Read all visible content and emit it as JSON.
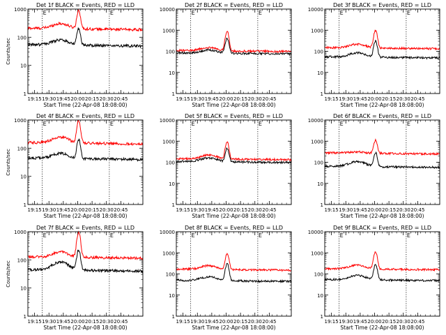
{
  "chart_data": [
    {
      "type": "line",
      "title": "Det 1f BLACK = Events, RED = LLD",
      "xlabel": "Start Time (22-Apr-08 18:08:00)",
      "ylabel": "Counts/sec",
      "y_scale": "log",
      "ylim": [
        1,
        1000
      ],
      "y_ticks": [
        "1",
        "10",
        "100",
        "1000"
      ],
      "x_ticks": [
        "19:15",
        "19:30",
        "19:45",
        "20:00",
        "20:15",
        "20:30",
        "20:45"
      ],
      "x_range_min": [
        0,
        120
      ],
      "markers": [
        {
          "label": "E",
          "time": "19:23"
        },
        {
          "label": "E",
          "time": "20:33"
        }
      ],
      "series": [
        {
          "color": "#ff0000",
          "baseline": 210,
          "hump": 1.5,
          "peak": 900
        },
        {
          "color": "#000000",
          "baseline": 55,
          "hump": 1.5,
          "peak": 200
        }
      ]
    },
    {
      "type": "line",
      "title": "Det 2f BLACK = Events, RED = LLD",
      "xlabel": "Start Time (22-Apr-08 18:08:00)",
      "ylabel": "",
      "y_scale": "log",
      "ylim": [
        1,
        10000
      ],
      "y_ticks": [
        "1",
        "10",
        "100",
        "1000",
        "10000"
      ],
      "x_ticks": [
        "19:15",
        "19:30",
        "19:45",
        "20:00",
        "20:15",
        "20:30",
        "20:45"
      ],
      "x_range_min": [
        0,
        120
      ],
      "markers": [
        {
          "label": "E",
          "time": "19:23"
        },
        {
          "label": "E",
          "time": "20:33"
        }
      ],
      "series": [
        {
          "color": "#ff0000",
          "baseline": 110,
          "hump": 1.4,
          "peak": 850
        },
        {
          "color": "#000000",
          "baseline": 85,
          "hump": 1.4,
          "peak": 420
        }
      ]
    },
    {
      "type": "line",
      "title": "Det 3f BLACK = Events, RED = LLD",
      "xlabel": "Start Time (22-Apr-08 18:08:00)",
      "ylabel": "",
      "y_scale": "log",
      "ylim": [
        1,
        10000
      ],
      "y_ticks": [
        "1",
        "10",
        "100",
        "1000",
        "10000"
      ],
      "x_ticks": [
        "19:15",
        "19:30",
        "19:45",
        "20:00",
        "20:15",
        "20:30",
        "20:45"
      ],
      "x_range_min": [
        0,
        120
      ],
      "markers": [
        {
          "label": "E",
          "time": "19:23"
        },
        {
          "label": "E",
          "time": "20:33"
        }
      ],
      "series": [
        {
          "color": "#ff0000",
          "baseline": 150,
          "hump": 1.5,
          "peak": 950
        },
        {
          "color": "#000000",
          "baseline": 55,
          "hump": 1.6,
          "peak": 300
        }
      ]
    },
    {
      "type": "line",
      "title": "Det 4f BLACK = Events, RED = LLD",
      "xlabel": "Start Time (22-Apr-08 18:08:00)",
      "ylabel": "Counts/sec",
      "y_scale": "log",
      "ylim": [
        1,
        1000
      ],
      "y_ticks": [
        "1",
        "10",
        "100",
        "1000"
      ],
      "x_ticks": [
        "19:15",
        "19:30",
        "19:45",
        "20:00",
        "20:15",
        "20:30",
        "20:45"
      ],
      "x_range_min": [
        0,
        120
      ],
      "markers": [
        {
          "label": "E",
          "time": "19:23"
        },
        {
          "label": "E",
          "time": "20:33"
        }
      ],
      "series": [
        {
          "color": "#ff0000",
          "baseline": 160,
          "hump": 1.6,
          "peak": 950
        },
        {
          "color": "#000000",
          "baseline": 45,
          "hump": 1.5,
          "peak": 200
        }
      ]
    },
    {
      "type": "line",
      "title": "Det 5f BLACK = Events, RED = LLD",
      "xlabel": "Start Time (22-Apr-08 18:08:00)",
      "ylabel": "",
      "y_scale": "log",
      "ylim": [
        1,
        10000
      ],
      "y_ticks": [
        "1",
        "10",
        "100",
        "1000",
        "10000"
      ],
      "x_ticks": [
        "19:15",
        "19:30",
        "19:45",
        "20:00",
        "20:15",
        "20:30",
        "20:45"
      ],
      "x_range_min": [
        0,
        120
      ],
      "markers": [
        {
          "label": "E",
          "time": "19:23"
        },
        {
          "label": "E",
          "time": "20:33"
        }
      ],
      "series": [
        {
          "color": "#ff0000",
          "baseline": 150,
          "hump": 1.5,
          "peak": 900
        },
        {
          "color": "#000000",
          "baseline": 110,
          "hump": 1.5,
          "peak": 450
        }
      ]
    },
    {
      "type": "line",
      "title": "Det 6f BLACK = Events, RED = LLD",
      "xlabel": "Start Time (22-Apr-08 18:08:00)",
      "ylabel": "",
      "y_scale": "log",
      "ylim": [
        1,
        10000
      ],
      "y_ticks": [
        "1",
        "10",
        "100",
        "1000",
        "10000"
      ],
      "x_ticks": [
        "19:15",
        "19:30",
        "19:45",
        "20:00",
        "20:15",
        "20:30",
        "20:45"
      ],
      "x_range_min": [
        0,
        120
      ],
      "markers": [
        {
          "label": "E",
          "time": "19:23"
        },
        {
          "label": "E",
          "time": "20:33"
        }
      ],
      "series": [
        {
          "color": "#ff0000",
          "baseline": 280,
          "hump": 1.15,
          "peak": 1100
        },
        {
          "color": "#000000",
          "baseline": 65,
          "hump": 1.7,
          "peak": 280
        }
      ]
    },
    {
      "type": "line",
      "title": "Det 7f BLACK = Events, RED = LLD",
      "xlabel": "Start Time (22-Apr-08 18:08:00)",
      "ylabel": "Counts/sec",
      "y_scale": "log",
      "ylim": [
        1,
        1000
      ],
      "y_ticks": [
        "1",
        "10",
        "100",
        "1000"
      ],
      "x_ticks": [
        "19:15",
        "19:30",
        "19:45",
        "20:00",
        "20:15",
        "20:30",
        "20:45"
      ],
      "x_range_min": [
        0,
        120
      ],
      "markers": [
        {
          "label": "E",
          "time": "19:23"
        },
        {
          "label": "E",
          "time": "20:33"
        }
      ],
      "series": [
        {
          "color": "#ff0000",
          "baseline": 130,
          "hump": 1.5,
          "peak": 950
        },
        {
          "color": "#000000",
          "baseline": 45,
          "hump": 1.9,
          "peak": 230
        }
      ]
    },
    {
      "type": "line",
      "title": "Det 8f BLACK = Events, RED = LLD",
      "xlabel": "Start Time (22-Apr-08 18:08:00)",
      "ylabel": "",
      "y_scale": "log",
      "ylim": [
        1,
        10000
      ],
      "y_ticks": [
        "1",
        "10",
        "100",
        "1000",
        "10000"
      ],
      "x_ticks": [
        "19:15",
        "19:30",
        "19:45",
        "20:00",
        "20:15",
        "20:30",
        "20:45"
      ],
      "x_range_min": [
        0,
        120
      ],
      "markers": [
        {
          "label": "E",
          "time": "19:23"
        },
        {
          "label": "E",
          "time": "20:33"
        }
      ],
      "series": [
        {
          "color": "#ff0000",
          "baseline": 170,
          "hump": 1.5,
          "peak": 900
        },
        {
          "color": "#000000",
          "baseline": 50,
          "hump": 1.5,
          "peak": 300
        }
      ]
    },
    {
      "type": "line",
      "title": "Det 9f BLACK = Events, RED = LLD",
      "xlabel": "Start Time (22-Apr-08 18:08:00)",
      "ylabel": "",
      "y_scale": "log",
      "ylim": [
        1,
        10000
      ],
      "y_ticks": [
        "1",
        "10",
        "100",
        "1000",
        "10000"
      ],
      "x_ticks": [
        "19:15",
        "19:30",
        "19:45",
        "20:00",
        "20:15",
        "20:30",
        "20:45"
      ],
      "x_range_min": [
        0,
        120
      ],
      "markers": [
        {
          "label": "E",
          "time": "19:23"
        },
        {
          "label": "E",
          "time": "20:33"
        }
      ],
      "series": [
        {
          "color": "#ff0000",
          "baseline": 180,
          "hump": 1.5,
          "peak": 1100
        },
        {
          "color": "#000000",
          "baseline": 55,
          "hump": 1.6,
          "peak": 280
        }
      ]
    }
  ]
}
